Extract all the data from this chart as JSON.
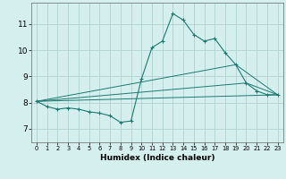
{
  "xlabel": "Humidex (Indice chaleur)",
  "ylabel": "",
  "bg_color": "#d5efef",
  "line_color": "#1a7a6e",
  "grid_color": "#b0d0d0",
  "xlim": [
    -0.5,
    23.5
  ],
  "ylim": [
    6.5,
    11.8
  ],
  "xticks": [
    0,
    1,
    2,
    3,
    4,
    5,
    6,
    7,
    8,
    9,
    10,
    11,
    12,
    13,
    14,
    15,
    16,
    17,
    18,
    19,
    20,
    21,
    22,
    23
  ],
  "yticks": [
    7,
    8,
    9,
    10,
    11
  ],
  "series": [
    [
      0,
      8.05
    ],
    [
      1,
      7.85
    ],
    [
      2,
      7.75
    ],
    [
      3,
      7.8
    ],
    [
      4,
      7.75
    ],
    [
      5,
      7.65
    ],
    [
      6,
      7.6
    ],
    [
      7,
      7.5
    ],
    [
      8,
      7.25
    ],
    [
      9,
      7.3
    ],
    [
      10,
      8.9
    ],
    [
      11,
      10.1
    ],
    [
      12,
      10.35
    ],
    [
      13,
      11.4
    ],
    [
      14,
      11.15
    ],
    [
      15,
      10.6
    ],
    [
      16,
      10.35
    ],
    [
      17,
      10.45
    ],
    [
      18,
      9.9
    ],
    [
      19,
      9.45
    ],
    [
      20,
      8.75
    ],
    [
      21,
      8.45
    ],
    [
      22,
      8.3
    ],
    [
      23,
      8.3
    ]
  ],
  "series2": [
    [
      0,
      8.05
    ],
    [
      23,
      8.3
    ]
  ],
  "series3": [
    [
      0,
      8.05
    ],
    [
      20,
      8.75
    ],
    [
      23,
      8.3
    ]
  ],
  "series4": [
    [
      0,
      8.05
    ],
    [
      19,
      9.45
    ],
    [
      23,
      8.3
    ]
  ]
}
